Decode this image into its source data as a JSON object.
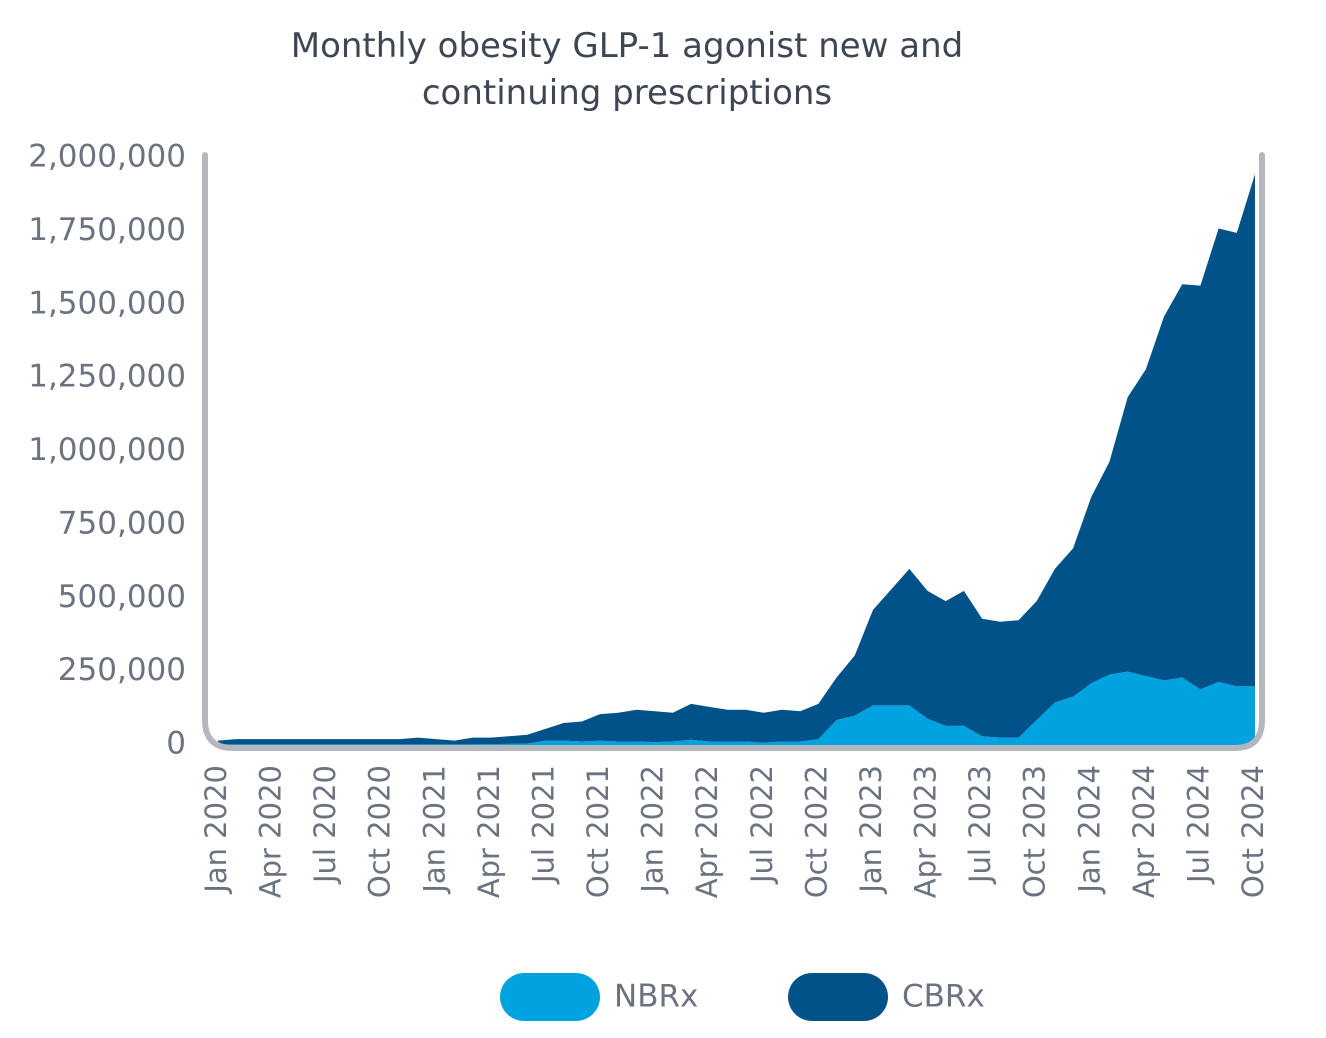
{
  "chart_data": {
    "type": "stacked_area",
    "title": [
      "Monthly obesity GLP-1 agonist new and",
      "continuing prescriptions"
    ],
    "categories": [
      "Jan 2020",
      null,
      null,
      "Apr 2020",
      null,
      null,
      "Jul 2020",
      null,
      null,
      "Oct 2020",
      null,
      null,
      "Jan 2021",
      null,
      null,
      "Apr 2021",
      null,
      null,
      "Jul 2021",
      null,
      null,
      "Oct 2021",
      null,
      null,
      "Jan 2022",
      null,
      null,
      "Apr 2022",
      null,
      null,
      "Jul 2022",
      null,
      null,
      "Oct 2022",
      null,
      null,
      "Jan 2023",
      null,
      null,
      "Apr 2023",
      null,
      null,
      "Jul 2023",
      null,
      null,
      "Oct 2023",
      null,
      null,
      "Jan 2024",
      null,
      null,
      "Apr 2024",
      null,
      null,
      "Jul 2024",
      null,
      null,
      "Oct 2024"
    ],
    "series": [
      {
        "name": "NBRx",
        "color": "#00a3e0",
        "values": [
          2000,
          2000,
          2000,
          2000,
          2000,
          2000,
          2000,
          2000,
          2000,
          2000,
          2000,
          2000,
          2000,
          2000,
          2000,
          3000,
          4000,
          5000,
          15000,
          15000,
          12000,
          15000,
          12000,
          12000,
          10000,
          12000,
          18000,
          12000,
          12000,
          12000,
          8000,
          12000,
          12000,
          20000,
          85000,
          100000,
          135000,
          135000,
          135000,
          90000,
          65000,
          65000,
          30000,
          25000,
          25000,
          85000,
          145000,
          165000,
          210000,
          240000,
          250000,
          235000,
          220000,
          230000,
          190000,
          215000,
          200000,
          200000
        ]
      },
      {
        "name": "CBRx",
        "color": "#005289",
        "values": [
          13000,
          18000,
          18000,
          18000,
          18000,
          18000,
          18000,
          18000,
          18000,
          18000,
          18000,
          23000,
          18000,
          13000,
          23000,
          22000,
          26000,
          30000,
          40000,
          60000,
          68000,
          90000,
          98000,
          108000,
          105000,
          98000,
          122000,
          118000,
          108000,
          108000,
          102000,
          108000,
          103000,
          120000,
          145000,
          205000,
          325000,
          395000,
          465000,
          435000,
          425000,
          460000,
          400000,
          395000,
          400000,
          405000,
          455000,
          505000,
          635000,
          725000,
          935000,
          1045000,
          1240000,
          1340000,
          1375000,
          1545000,
          1545000,
          1745000
        ]
      }
    ],
    "ylim": [
      0,
      2000000
    ],
    "yticks": [
      0,
      {
        "value": 250000,
        "label": "250,000"
      },
      {
        "value": 500000,
        "label": "500,000"
      },
      {
        "value": 750000,
        "label": "750,000"
      },
      {
        "value": 1000000,
        "label": "1,000,000"
      },
      {
        "value": 1250000,
        "label": "1,250,000"
      },
      {
        "value": 1500000,
        "label": "1,500,000"
      },
      {
        "value": 1750000,
        "label": "1,750,000"
      },
      {
        "value": 2000000,
        "label": "2,000,000"
      }
    ],
    "axis_color": "#b4b7bd"
  }
}
